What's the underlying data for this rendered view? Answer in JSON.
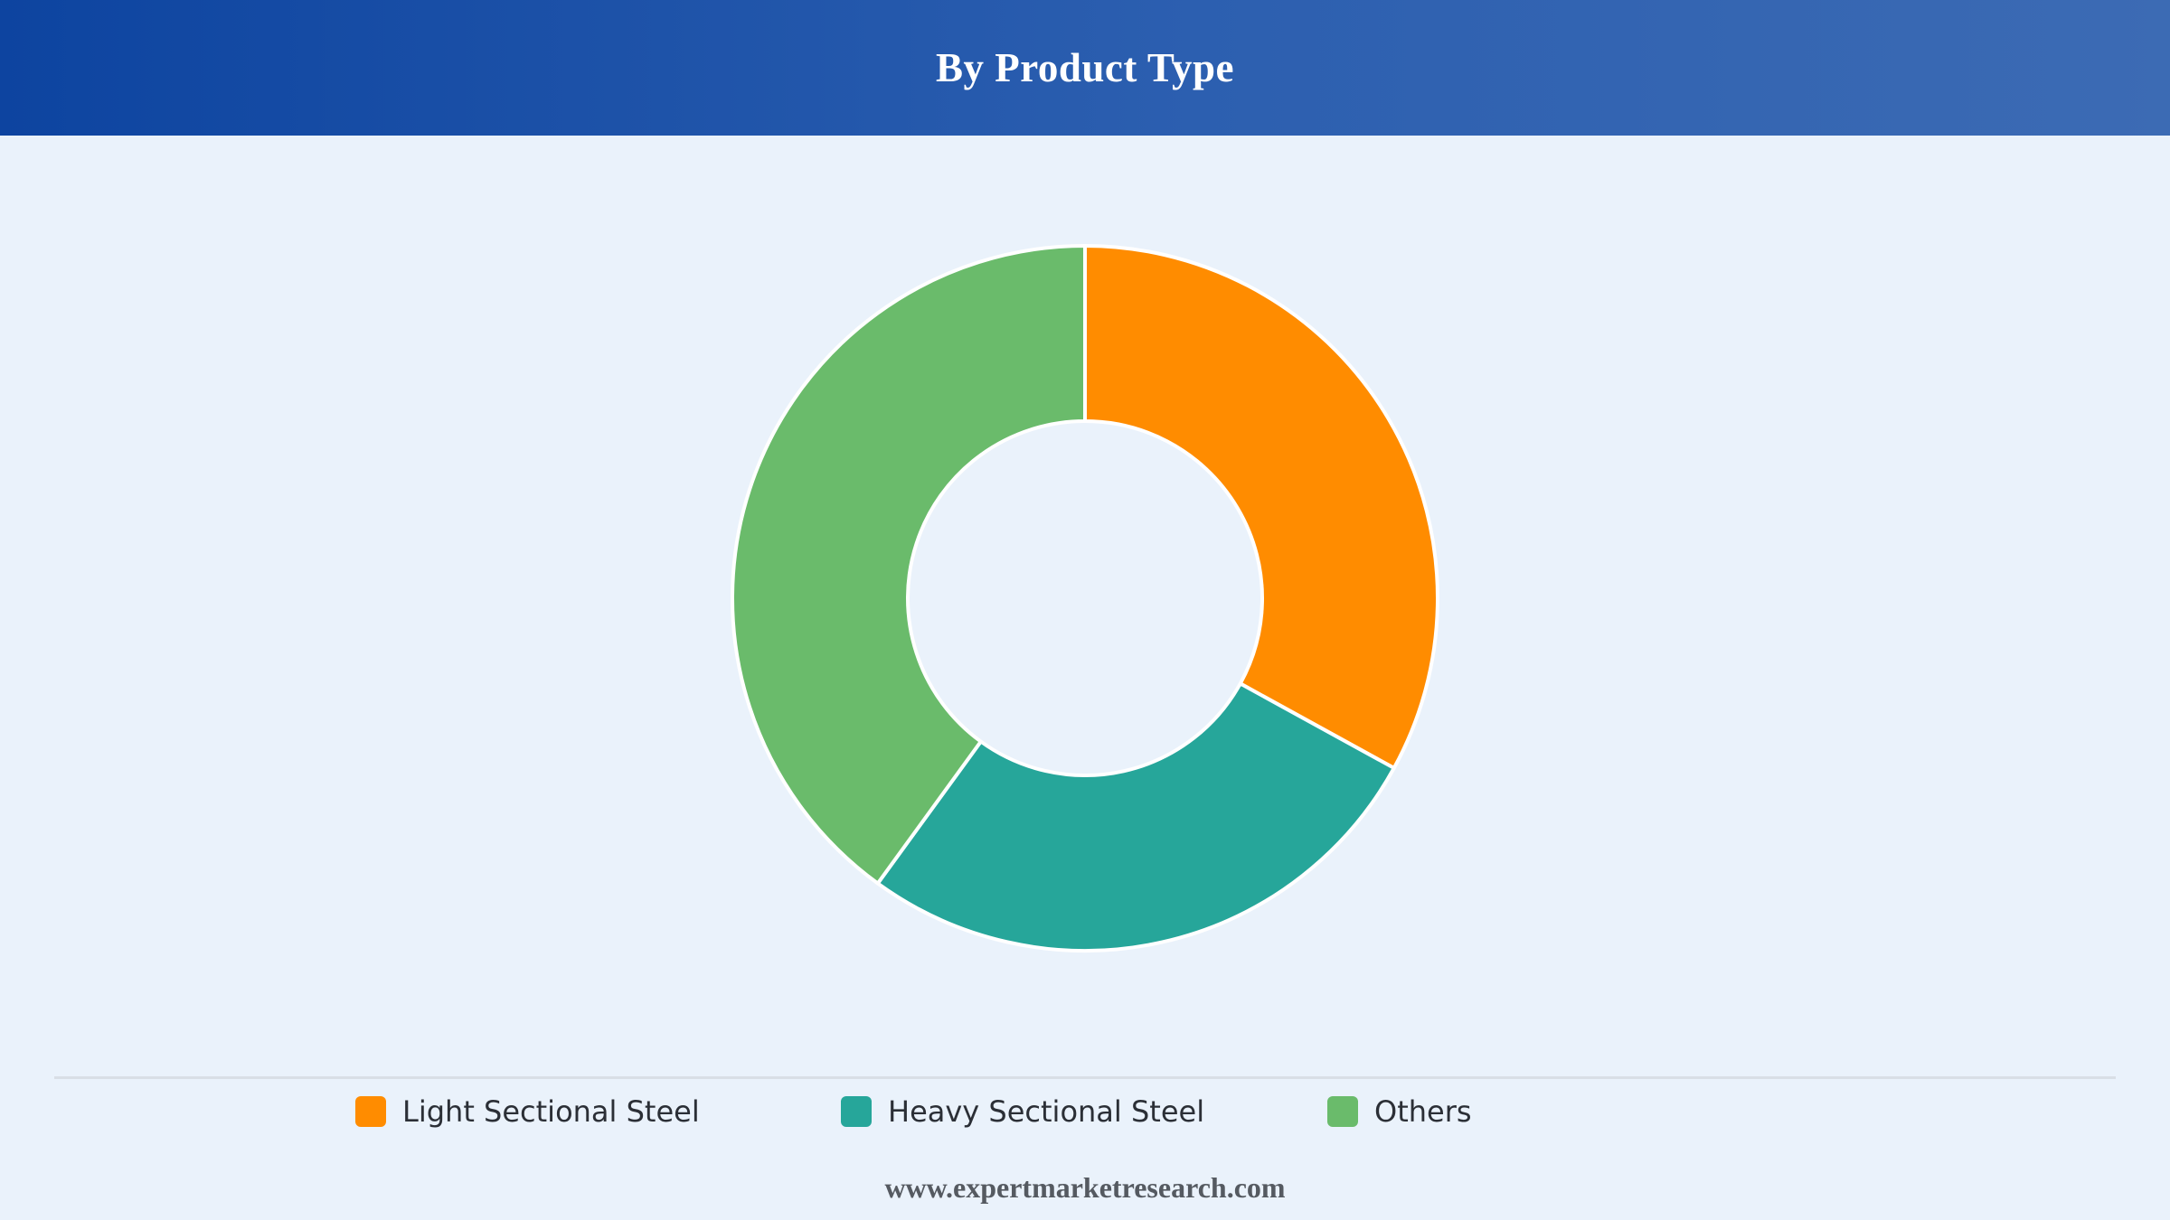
{
  "header": {
    "title": "By Product Type"
  },
  "chart_data": {
    "type": "pie",
    "donut": true,
    "title": "By Product Type",
    "categories": [
      "Light Sectional Steel",
      "Heavy Sectional Steel",
      "Others"
    ],
    "values": [
      33,
      27,
      40
    ],
    "colors": [
      "#ff8c00",
      "#26a69a",
      "#6abb6b"
    ],
    "legend": "bottom"
  },
  "legend": {
    "items": [
      {
        "label": "Light Sectional Steel",
        "color": "#ff8c00"
      },
      {
        "label": "Heavy Sectional Steel",
        "color": "#26a69a"
      },
      {
        "label": "Others",
        "color": "#6abb6b"
      }
    ]
  },
  "footer": {
    "text": "www.expertmarketresearch.com"
  }
}
